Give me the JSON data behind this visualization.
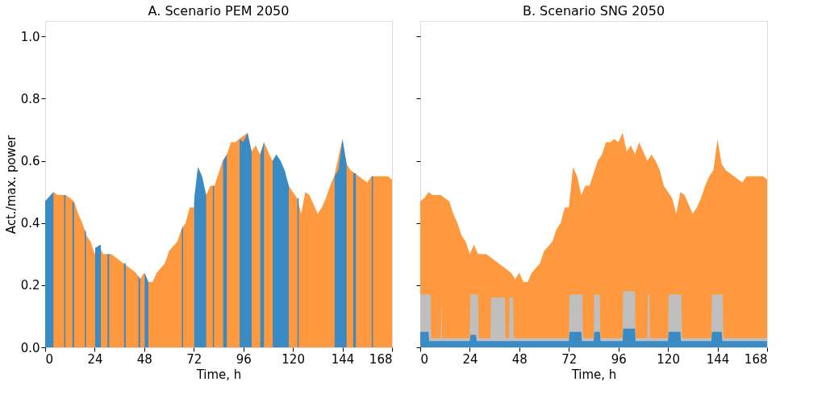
{
  "chart_data": [
    {
      "type": "area",
      "title": "A. Scenario PEM 2050",
      "xlabel": "Time, h",
      "ylabel": "Act./max. power",
      "xlim": [
        0,
        168
      ],
      "xticks": [
        0,
        24,
        48,
        72,
        96,
        120,
        144,
        168
      ],
      "ylim": [
        0,
        1.05
      ],
      "yticks": [
        {
          "value": 0,
          "label": "0.0"
        },
        0.2,
        0.4,
        0.6,
        0.8,
        {
          "value": 1,
          "label": "1.0"
        }
      ],
      "grid": false,
      "series": [
        {
          "color": "#ff993f",
          "x": [
            0,
            4,
            6,
            10,
            14,
            16,
            18,
            20,
            22,
            24,
            26,
            28,
            32,
            36,
            40,
            44,
            46,
            48,
            50,
            52,
            54,
            58,
            60,
            64,
            66,
            68,
            70,
            72,
            74,
            78,
            80,
            82,
            84,
            86,
            88,
            90,
            92,
            94,
            98,
            100,
            102,
            104,
            106,
            108,
            110,
            112,
            118,
            120,
            122,
            124,
            126,
            128,
            130,
            132,
            134,
            136,
            138,
            140,
            144,
            146,
            148,
            150,
            152,
            154,
            156,
            158,
            162,
            166,
            168
          ],
          "values": [
            0.47,
            0.5,
            0.49,
            0.49,
            0.47,
            0.43,
            0.4,
            0.36,
            0.34,
            0.3,
            0.33,
            0.3,
            0.3,
            0.28,
            0.26,
            0.24,
            0.22,
            0.24,
            0.21,
            0.21,
            0.24,
            0.27,
            0.31,
            0.34,
            0.38,
            0.4,
            0.45,
            0.45,
            0.58,
            0.49,
            0.52,
            0.52,
            0.56,
            0.6,
            0.62,
            0.66,
            0.66,
            0.67,
            0.69,
            0.63,
            0.65,
            0.62,
            0.66,
            0.63,
            0.6,
            0.62,
            0.52,
            0.5,
            0.48,
            0.43,
            0.5,
            0.49,
            0.46,
            0.43,
            0.45,
            0.48,
            0.52,
            0.55,
            0.67,
            0.59,
            0.57,
            0.56,
            0.55,
            0.54,
            0.53,
            0.55,
            0.55,
            0.55,
            0.54
          ]
        },
        {
          "color": "#3a8ac4",
          "x": [
            0,
            4,
            6,
            9.2,
            9.8,
            11,
            13.2,
            14,
            16,
            19.2,
            19.8,
            22,
            24.2,
            27,
            28,
            30.2,
            31,
            34,
            38.2,
            39,
            42,
            45.2,
            46,
            47,
            48.2,
            50,
            60,
            66.2,
            66.8,
            70,
            72.2,
            74,
            76,
            78,
            80,
            81.2,
            81.8,
            84,
            86.2,
            88,
            90,
            94.2,
            96,
            98,
            100,
            102,
            104.2,
            106,
            108,
            110.2,
            112,
            114,
            116,
            118,
            120,
            122.2,
            122.8,
            130,
            140.2,
            142,
            144,
            146,
            148,
            149.2,
            150.5,
            155,
            158.2,
            158.8
          ],
          "values": [
            0.47,
            0.5,
            null,
            0.49,
            0.49,
            null,
            0.47,
            0.46,
            null,
            0.38,
            0.37,
            null,
            0.32,
            0.33,
            null,
            0.3,
            0.3,
            null,
            0.27,
            0.27,
            null,
            0.23,
            0.22,
            null,
            0.24,
            0.21,
            null,
            0.38,
            0.39,
            null,
            0.48,
            0.58,
            0.55,
            0.49,
            null,
            0.52,
            0.52,
            null,
            0.6,
            0.62,
            null,
            0.67,
            0.66,
            0.69,
            0.63,
            null,
            0.62,
            0.66,
            null,
            0.6,
            0.62,
            0.6,
            0.57,
            0.52,
            null,
            0.48,
            0.48,
            null,
            0.55,
            0.57,
            0.67,
            0.59,
            null,
            0.56,
            0.56,
            null,
            0.55,
            0.55
          ]
        }
      ]
    },
    {
      "type": "area",
      "title": "B. Scenario SNG 2050",
      "xlabel": "Time, h",
      "xlim": [
        0,
        168
      ],
      "xticks": [
        0,
        24,
        48,
        72,
        96,
        120,
        144,
        168
      ],
      "ylim": [
        0,
        1.05
      ],
      "yticks": [
        0,
        0.2,
        0.4,
        0.6,
        0.8,
        1
      ],
      "grid": false,
      "tick_labels": "x",
      "series": [
        {
          "color": "#ff993f",
          "x": [
            0,
            2,
            4,
            6,
            10,
            14,
            16,
            18,
            20,
            22,
            24,
            26,
            28,
            32,
            36,
            40,
            44,
            46,
            48,
            50,
            52,
            54,
            58,
            60,
            64,
            66,
            68,
            70,
            72,
            74,
            76,
            78,
            80,
            82,
            84,
            86,
            88,
            90,
            92,
            94,
            96,
            98,
            100,
            102,
            104,
            106,
            108,
            110,
            112,
            114,
            116,
            118,
            120,
            122,
            124,
            126,
            128,
            130,
            132,
            134,
            136,
            138,
            140,
            142,
            144,
            146,
            148,
            150,
            152,
            154,
            156,
            158,
            162,
            166,
            168
          ],
          "values": [
            0.47,
            0.48,
            0.5,
            0.49,
            0.49,
            0.47,
            0.43,
            0.4,
            0.36,
            0.34,
            0.3,
            0.33,
            0.3,
            0.3,
            0.28,
            0.26,
            0.24,
            0.22,
            0.24,
            0.21,
            0.21,
            0.24,
            0.27,
            0.31,
            0.34,
            0.38,
            0.4,
            0.45,
            0.45,
            0.58,
            0.55,
            0.49,
            0.52,
            0.52,
            0.56,
            0.6,
            0.62,
            0.66,
            0.66,
            0.67,
            0.66,
            0.69,
            0.63,
            0.65,
            0.62,
            0.66,
            0.63,
            0.6,
            0.62,
            0.6,
            0.57,
            0.52,
            0.5,
            0.48,
            0.43,
            0.5,
            0.49,
            0.46,
            0.43,
            0.45,
            0.48,
            0.52,
            0.55,
            0.57,
            0.67,
            0.59,
            0.57,
            0.56,
            0.55,
            0.54,
            0.53,
            0.55,
            0.55,
            0.55,
            0.54
          ]
        },
        {
          "color": "#bfbfbf",
          "x": [
            0,
            5,
            5.3,
            10,
            10.3,
            10.6,
            24,
            24.3,
            28,
            28.3,
            34,
            34.3,
            41,
            41.3,
            43,
            43.3,
            45,
            45.3,
            72,
            72.3,
            78.5,
            78.8,
            84,
            84.3,
            87,
            87.3,
            98,
            98.3,
            104,
            104.3,
            110,
            110.3,
            111,
            111.3,
            120,
            120.3,
            126.5,
            126.8,
            141,
            141.3,
            146.5,
            146.8,
            168
          ],
          "values": [
            0.17,
            0.17,
            0.03,
            0.03,
            0.16,
            0.03,
            0.03,
            0.17,
            0.17,
            0.03,
            0.03,
            0.16,
            0.16,
            0.03,
            0.03,
            0.16,
            0.16,
            0.03,
            0.03,
            0.17,
            0.17,
            0.03,
            0.03,
            0.17,
            0.17,
            0.03,
            0.03,
            0.18,
            0.18,
            0.03,
            0.03,
            0.17,
            0.17,
            0.03,
            0.03,
            0.17,
            0.17,
            0.03,
            0.03,
            0.17,
            0.17,
            0.03,
            0.03
          ]
        },
        {
          "color": "#3a8ac4",
          "x": [
            0,
            4,
            4.3,
            24,
            24.3,
            27,
            27.3,
            72,
            72.3,
            78,
            78.3,
            84,
            84.3,
            87,
            87.3,
            98,
            98.3,
            104,
            104.3,
            120,
            120.3,
            126,
            126.3,
            141,
            141.3,
            146,
            146.3,
            168
          ],
          "values": [
            0.05,
            0.05,
            0.02,
            0.02,
            0.04,
            0.04,
            0.02,
            0.02,
            0.05,
            0.05,
            0.02,
            0.02,
            0.05,
            0.05,
            0.02,
            0.02,
            0.06,
            0.06,
            0.02,
            0.02,
            0.05,
            0.05,
            0.02,
            0.02,
            0.05,
            0.05,
            0.02,
            0.02
          ]
        }
      ]
    }
  ]
}
